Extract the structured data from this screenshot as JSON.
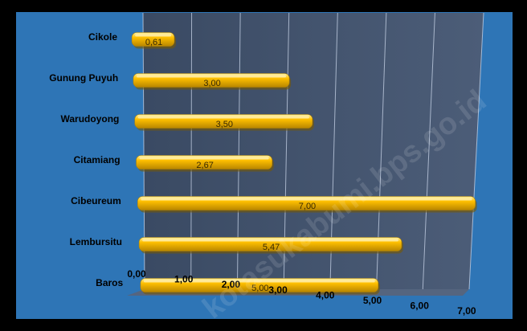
{
  "chart_data": {
    "type": "bar",
    "orientation": "horizontal",
    "categories": [
      "Cikole",
      "Gunung Puyuh",
      "Warudoyong",
      "Citamiang",
      "Cibeureum",
      "Lembursitu",
      "Baros"
    ],
    "values": [
      0.61,
      3.0,
      3.5,
      2.67,
      7.0,
      5.47,
      5.0
    ],
    "data_labels": [
      "0,61",
      "3,00",
      "3,50",
      "2,67",
      "7,00",
      "5,47",
      "5,00"
    ],
    "x_ticks": [
      "0,00",
      "1,00",
      "2,00",
      "3,00",
      "4,00",
      "5,00",
      "6,00",
      "7,00"
    ],
    "xlim": [
      0,
      7
    ],
    "grid": true,
    "legend": "none",
    "colors": {
      "background": "#000000",
      "panel": "#2e75b6",
      "bar": "#ffc000",
      "bar_light": "#fff2a8",
      "bar_dark": "#b88600",
      "gridline": "#c8d4e8"
    }
  },
  "watermark": "kotasukabumi.bps.go.id"
}
